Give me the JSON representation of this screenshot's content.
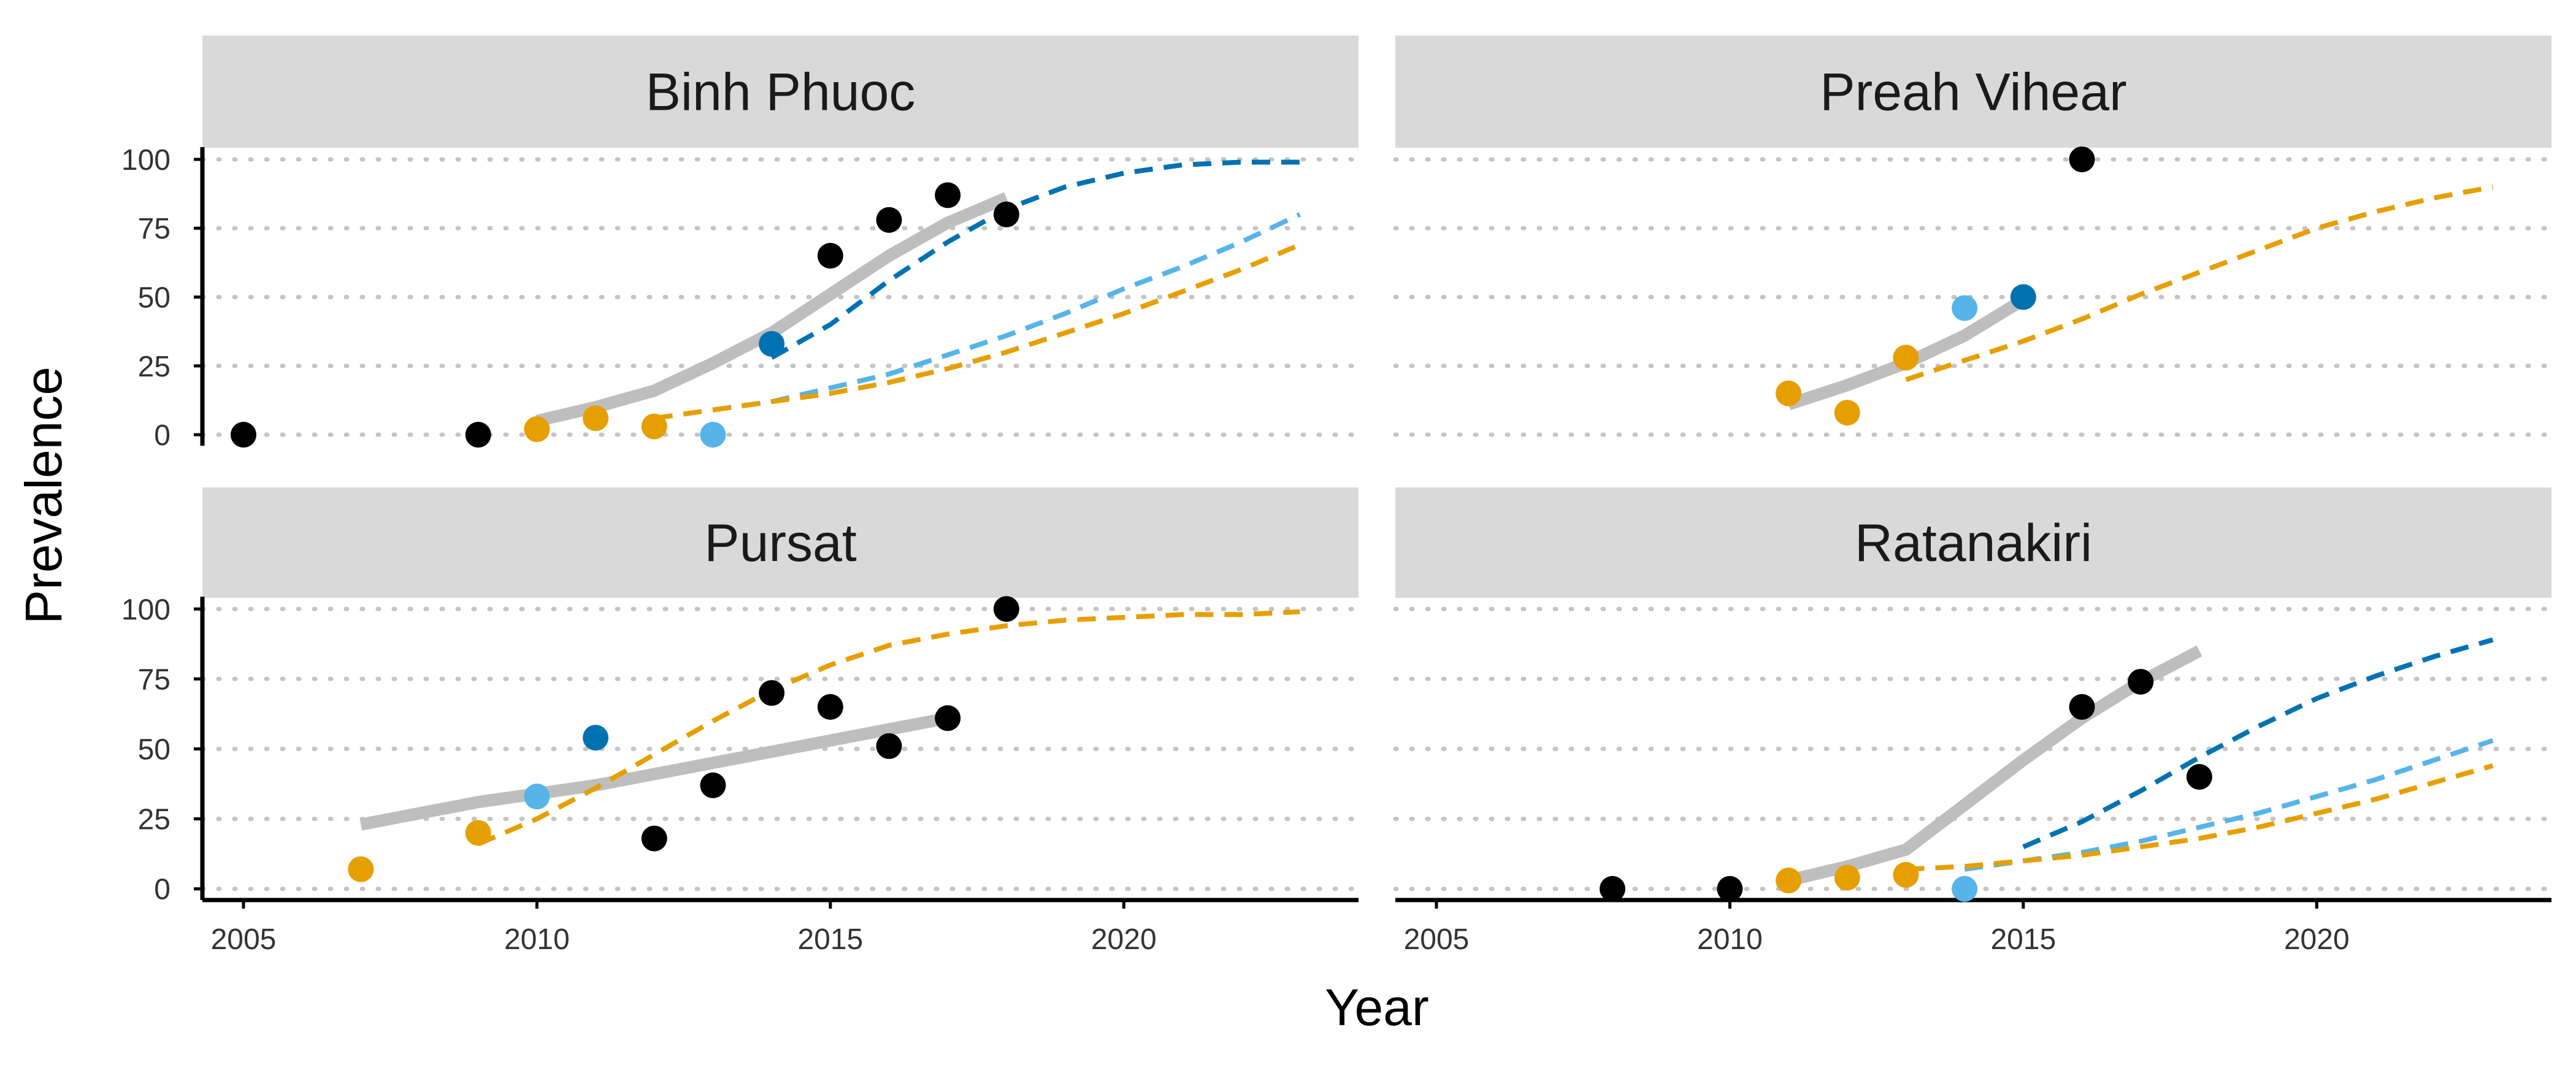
{
  "figure": {
    "xlabel": "Year",
    "ylabel": "Prevalence",
    "colors": {
      "observed": "#000000",
      "fit": "#BEBEBE",
      "orange": "#E69F00",
      "sky_blue": "#56B4E9",
      "blue": "#0072B2",
      "strip_bg": "#D9D9D9",
      "grid": "#C4C4C4"
    }
  },
  "chart_data": [
    {
      "type": "scatter",
      "title": "Binh Phuoc",
      "xlim": [
        2004.3,
        2024
      ],
      "ylim": [
        -4,
        104
      ],
      "x_ticks": [
        2005,
        2010,
        2015,
        2020
      ],
      "y_ticks": [
        0,
        25,
        50,
        75,
        100
      ],
      "grid": "horizontal dotted",
      "points": [
        {
          "x": 2005,
          "y": 0,
          "color": "observed"
        },
        {
          "x": 2009,
          "y": 0,
          "color": "observed"
        },
        {
          "x": 2010,
          "y": 2,
          "color": "orange"
        },
        {
          "x": 2011,
          "y": 6,
          "color": "orange"
        },
        {
          "x": 2012,
          "y": 3,
          "color": "orange"
        },
        {
          "x": 2013,
          "y": 0,
          "color": "sky_blue"
        },
        {
          "x": 2014,
          "y": 33,
          "color": "blue"
        },
        {
          "x": 2015,
          "y": 65,
          "color": "observed"
        },
        {
          "x": 2016,
          "y": 78,
          "color": "observed"
        },
        {
          "x": 2017,
          "y": 87,
          "color": "observed"
        },
        {
          "x": 2018,
          "y": 80,
          "color": "observed"
        }
      ],
      "series": [
        {
          "color": "fit",
          "style": "solid",
          "x": [
            2010,
            2011,
            2012,
            2013,
            2014,
            2015,
            2016,
            2017,
            2018
          ],
          "y": [
            5,
            10,
            16,
            26,
            37,
            51,
            65,
            77,
            86
          ]
        },
        {
          "color": "blue",
          "style": "dashed",
          "x": [
            2014,
            2015,
            2016,
            2017,
            2018,
            2019,
            2020,
            2021,
            2022,
            2023
          ],
          "y": [
            28,
            40,
            56,
            70,
            82,
            90,
            95,
            98,
            99,
            99
          ]
        },
        {
          "color": "sky_blue",
          "style": "dashed",
          "x": [
            2013,
            2014,
            2015,
            2016,
            2017,
            2018,
            2019,
            2020,
            2021,
            2022,
            2023
          ],
          "y": [
            9,
            12,
            17,
            22,
            29,
            36,
            44,
            53,
            61,
            70,
            80
          ]
        },
        {
          "color": "orange",
          "style": "dashed",
          "x": [
            2012,
            2013,
            2014,
            2015,
            2016,
            2017,
            2018,
            2019,
            2020,
            2021,
            2022,
            2023
          ],
          "y": [
            6,
            9,
            12,
            15,
            19,
            24,
            30,
            37,
            44,
            52,
            60,
            69
          ]
        }
      ]
    },
    {
      "type": "scatter",
      "title": "Preah Vihear",
      "xlim": [
        2004.3,
        2024
      ],
      "ylim": [
        -4,
        104
      ],
      "x_ticks": [
        2005,
        2010,
        2015,
        2020
      ],
      "y_ticks": [
        0,
        25,
        50,
        75,
        100
      ],
      "grid": "horizontal dotted",
      "points": [
        {
          "x": 2011,
          "y": 15,
          "color": "orange"
        },
        {
          "x": 2012,
          "y": 8,
          "color": "orange"
        },
        {
          "x": 2013,
          "y": 28,
          "color": "orange"
        },
        {
          "x": 2014,
          "y": 46,
          "color": "sky_blue"
        },
        {
          "x": 2015,
          "y": 50,
          "color": "blue"
        },
        {
          "x": 2016,
          "y": 100,
          "color": "observed"
        }
      ],
      "series": [
        {
          "color": "fit",
          "style": "solid",
          "x": [
            2011,
            2012,
            2013,
            2014,
            2015
          ],
          "y": [
            11,
            18,
            26,
            36,
            49
          ]
        },
        {
          "color": "orange",
          "style": "dashed",
          "x": [
            2013,
            2014,
            2015,
            2016,
            2017,
            2018,
            2019,
            2020,
            2021,
            2022,
            2023
          ],
          "y": [
            20,
            27,
            34,
            42,
            51,
            59,
            67,
            75,
            81,
            86,
            90
          ]
        }
      ]
    },
    {
      "type": "scatter",
      "title": "Pursat",
      "xlim": [
        2004.3,
        2024
      ],
      "ylim": [
        -4,
        104
      ],
      "x_ticks": [
        2005,
        2010,
        2015,
        2020
      ],
      "y_ticks": [
        0,
        25,
        50,
        75,
        100
      ],
      "grid": "horizontal dotted",
      "points": [
        {
          "x": 2007,
          "y": 7,
          "color": "orange"
        },
        {
          "x": 2009,
          "y": 20,
          "color": "orange"
        },
        {
          "x": 2010,
          "y": 33,
          "color": "sky_blue"
        },
        {
          "x": 2011,
          "y": 54,
          "color": "blue"
        },
        {
          "x": 2012,
          "y": 18,
          "color": "observed"
        },
        {
          "x": 2013,
          "y": 37,
          "color": "observed"
        },
        {
          "x": 2014,
          "y": 70,
          "color": "observed"
        },
        {
          "x": 2015,
          "y": 65,
          "color": "observed"
        },
        {
          "x": 2016,
          "y": 51,
          "color": "observed"
        },
        {
          "x": 2017,
          "y": 61,
          "color": "observed"
        },
        {
          "x": 2018,
          "y": 100,
          "color": "observed"
        }
      ],
      "series": [
        {
          "color": "fit",
          "style": "solid",
          "x": [
            2007,
            2008,
            2009,
            2010,
            2011,
            2012,
            2013,
            2014,
            2015,
            2016,
            2017
          ],
          "y": [
            23,
            27,
            31,
            34,
            37,
            41,
            45,
            49,
            53,
            57,
            61
          ]
        },
        {
          "color": "orange",
          "style": "dashed",
          "x": [
            2009,
            2010,
            2011,
            2012,
            2013,
            2014,
            2015,
            2016,
            2017,
            2018,
            2019,
            2020,
            2021,
            2022,
            2023
          ],
          "y": [
            16,
            25,
            36,
            48,
            60,
            71,
            80,
            87,
            91,
            94,
            96,
            97,
            98,
            98,
            99
          ]
        }
      ]
    },
    {
      "type": "scatter",
      "title": "Ratanakiri",
      "xlim": [
        2004.3,
        2024
      ],
      "ylim": [
        -4,
        104
      ],
      "x_ticks": [
        2005,
        2010,
        2015,
        2020
      ],
      "y_ticks": [
        0,
        25,
        50,
        75,
        100
      ],
      "grid": "horizontal dotted",
      "points": [
        {
          "x": 2008,
          "y": 0,
          "color": "observed"
        },
        {
          "x": 2010,
          "y": 0,
          "color": "observed"
        },
        {
          "x": 2011,
          "y": 3,
          "color": "orange"
        },
        {
          "x": 2012,
          "y": 4,
          "color": "orange"
        },
        {
          "x": 2013,
          "y": 5,
          "color": "orange"
        },
        {
          "x": 2014,
          "y": 0,
          "color": "sky_blue"
        },
        {
          "x": 2016,
          "y": 65,
          "color": "observed"
        },
        {
          "x": 2017,
          "y": 74,
          "color": "observed"
        },
        {
          "x": 2018,
          "y": 40,
          "color": "observed"
        }
      ],
      "series": [
        {
          "color": "fit",
          "style": "solid",
          "x": [
            2011,
            2012,
            2013,
            2014,
            2015,
            2016,
            2017,
            2018
          ],
          "y": [
            3,
            8,
            14,
            30,
            46,
            61,
            74,
            85
          ]
        },
        {
          "color": "blue",
          "style": "dashed",
          "x": [
            2015,
            2016,
            2017,
            2018,
            2019,
            2020,
            2021,
            2022,
            2023
          ],
          "y": [
            15,
            24,
            35,
            47,
            58,
            68,
            76,
            83,
            89
          ]
        },
        {
          "color": "sky_blue",
          "style": "dashed",
          "x": [
            2014,
            2015,
            2016,
            2017,
            2018,
            2019,
            2020,
            2021,
            2022,
            2023
          ],
          "y": [
            7,
            10,
            13,
            17,
            22,
            27,
            33,
            39,
            46,
            53
          ]
        },
        {
          "color": "orange",
          "style": "dashed",
          "x": [
            2013,
            2014,
            2015,
            2016,
            2017,
            2018,
            2019,
            2020,
            2021,
            2022,
            2023
          ],
          "y": [
            7,
            8,
            10,
            12,
            15,
            18,
            22,
            27,
            32,
            38,
            44
          ]
        }
      ]
    }
  ]
}
